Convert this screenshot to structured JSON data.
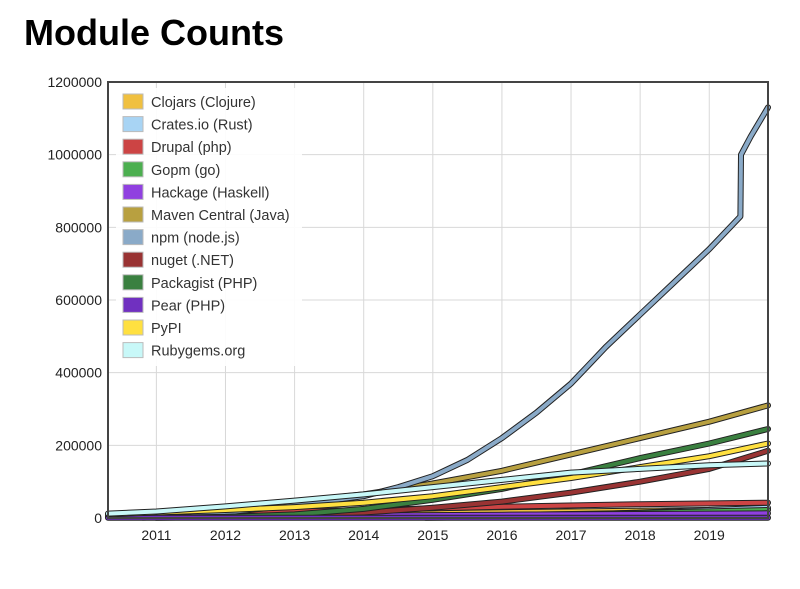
{
  "chart_data": {
    "type": "line",
    "title": "Module Counts",
    "xlabel": "",
    "ylabel": "",
    "xlim": [
      2010.3,
      2019.85
    ],
    "ylim": [
      0,
      1200000
    ],
    "yticks": [
      "0",
      "200000",
      "400000",
      "600000",
      "800000",
      "1000000",
      "1200000"
    ],
    "xticks": [
      "2011",
      "2012",
      "2013",
      "2014",
      "2015",
      "2016",
      "2017",
      "2018",
      "2019"
    ],
    "grid": true,
    "legend_position": "top-left",
    "series": [
      {
        "name": "Clojars (Clojure)",
        "color": "#f0c040",
        "x": [
          2010.3,
          2012,
          2014,
          2016,
          2018,
          2019.85
        ],
        "y": [
          2000,
          6000,
          11000,
          16000,
          20000,
          24000
        ]
      },
      {
        "name": "Crates.io (Rust)",
        "color": "#a8d4f4",
        "x": [
          2014.9,
          2016,
          2017,
          2018,
          2019.85
        ],
        "y": [
          500,
          3000,
          8000,
          15000,
          28000
        ]
      },
      {
        "name": "Drupal (php)",
        "color": "#cc4444",
        "x": [
          2010.8,
          2012,
          2014,
          2016,
          2018,
          2019.85
        ],
        "y": [
          8000,
          14000,
          22000,
          31000,
          38000,
          42000
        ]
      },
      {
        "name": "Gopm (go)",
        "color": "#4caf50",
        "x": [
          2014.5,
          2016,
          2018,
          2019.85
        ],
        "y": [
          2000,
          8000,
          14000,
          22000
        ]
      },
      {
        "name": "Hackage (Haskell)",
        "color": "#9040e0",
        "x": [
          2010.8,
          2012,
          2014,
          2016,
          2018,
          2019.85
        ],
        "y": [
          3000,
          5000,
          7000,
          9000,
          11000,
          13000
        ]
      },
      {
        "name": "Maven Central (Java)",
        "color": "#b8a040",
        "x": [
          2010.3,
          2011,
          2012,
          2013,
          2014,
          2015,
          2016,
          2017,
          2018,
          2019,
          2019.85
        ],
        "y": [
          5000,
          15000,
          30000,
          45000,
          65000,
          95000,
          130000,
          175000,
          220000,
          265000,
          310000
        ]
      },
      {
        "name": "npm (node.js)",
        "color": "#8aaac8",
        "x": [
          2010.8,
          2011.5,
          2012,
          2013,
          2014,
          2014.5,
          2015,
          2015.5,
          2016,
          2016.5,
          2017,
          2017.3,
          2017.5,
          2018,
          2018.5,
          2019,
          2019.45,
          2019.46,
          2019.6,
          2019.85
        ],
        "y": [
          1000,
          5000,
          15000,
          35000,
          60000,
          85000,
          115000,
          160000,
          220000,
          290000,
          370000,
          430000,
          470000,
          560000,
          650000,
          740000,
          830000,
          1000000,
          1050000,
          1130000
        ]
      },
      {
        "name": "nuget (.NET)",
        "color": "#993333",
        "x": [
          2011,
          2012,
          2013,
          2014,
          2015,
          2016,
          2017,
          2018,
          2019,
          2019.85
        ],
        "y": [
          500,
          3000,
          8000,
          15000,
          28000,
          45000,
          70000,
          100000,
          135000,
          185000
        ]
      },
      {
        "name": "Packagist (PHP)",
        "color": "#3a8040",
        "x": [
          2012,
          2013,
          2014,
          2015,
          2016,
          2017,
          2018,
          2019,
          2019.85
        ],
        "y": [
          3000,
          10000,
          25000,
          50000,
          80000,
          120000,
          165000,
          205000,
          245000
        ]
      },
      {
        "name": "Pear (PHP)",
        "color": "#7030c0",
        "x": [
          2010.3,
          2019.85
        ],
        "y": [
          600,
          600
        ]
      },
      {
        "name": "PyPI",
        "color": "#ffe040",
        "x": [
          2010.3,
          2011,
          2012,
          2013,
          2014,
          2015,
          2016,
          2017,
          2018,
          2019,
          2019.85
        ],
        "y": [
          10000,
          15000,
          22000,
          30000,
          42000,
          60000,
          85000,
          110000,
          140000,
          170000,
          205000
        ]
      },
      {
        "name": "Rubygems.org",
        "color": "#c8f8f8",
        "x": [
          2010.3,
          2011,
          2012,
          2013,
          2014,
          2015,
          2016,
          2017,
          2018,
          2019,
          2019.85
        ],
        "y": [
          12000,
          18000,
          32000,
          48000,
          65000,
          85000,
          105000,
          125000,
          135000,
          145000,
          150000
        ]
      }
    ]
  }
}
